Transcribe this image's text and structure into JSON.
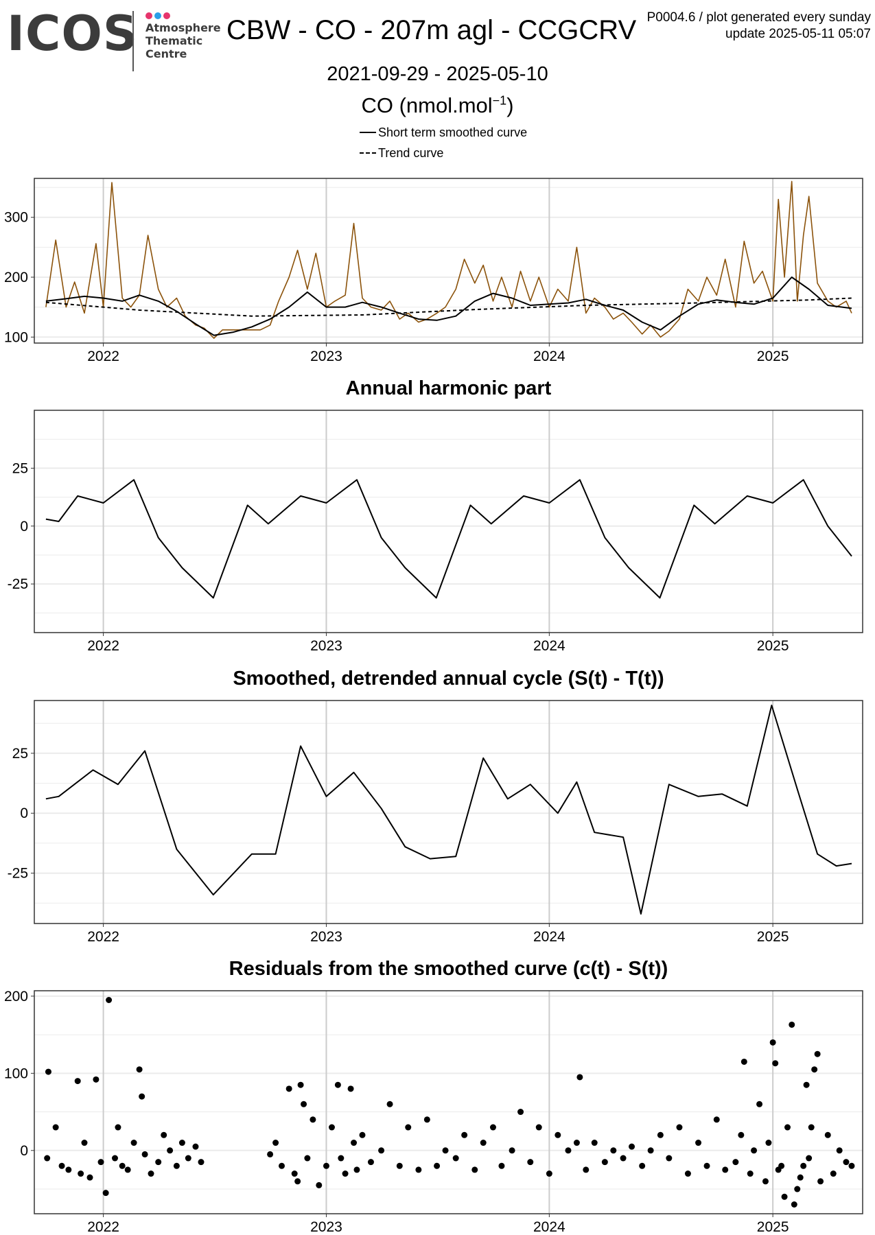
{
  "header": {
    "logo": {
      "wordmark": "ICOS",
      "subtitle_lines": [
        "Atmosphere",
        "Thematic",
        "Centre"
      ],
      "dot_colors": [
        "#e6356c",
        "#2b9fe8",
        "#e6356c"
      ]
    },
    "title": "CBW - CO - 207m agl - CCGCRV",
    "meta_line1": "P0004.6 / plot generated every sunday",
    "meta_line2": "update  2025-05-11 05:07",
    "date_range": "2021-09-29 - 2025-05-10",
    "unit_base": "CO (nmol.mol",
    "unit_sup": "−1",
    "unit_close": ")"
  },
  "legend": [
    {
      "label": "Short term smoothed curve",
      "style": "solid"
    },
    {
      "label": "Trend curve",
      "style": "dashed"
    }
  ],
  "colors": {
    "observations": "#8b520a",
    "curves": "#000000",
    "grid_major": "#cccccc",
    "grid_minor": "#ebebeb",
    "panel_border": "#333333"
  },
  "chart_data": [
    {
      "type": "line",
      "title": "",
      "x_ticks": [
        "2022",
        "2023",
        "2024",
        "2025"
      ],
      "y_ticks": [
        "100",
        "200",
        "300"
      ],
      "xlim": [
        "2021-09-10",
        "2025-05-28"
      ],
      "ylim": [
        90,
        365
      ],
      "series": [
        {
          "name": "",
          "style": "observations",
          "x": [
            "2021-09-29",
            "2021-10-15",
            "2021-11-01",
            "2021-11-15",
            "2021-12-01",
            "2021-12-20",
            "2022-01-01",
            "2022-01-15",
            "2022-02-01",
            "2022-02-15",
            "2022-03-01",
            "2022-03-15",
            "2022-04-01",
            "2022-04-15",
            "2022-05-01",
            "2022-05-15",
            "2022-06-01",
            "2022-06-15",
            "2022-07-01",
            "2022-07-15",
            "2022-08-01",
            "2022-08-15",
            "2022-09-01",
            "2022-09-15",
            "2022-10-01",
            "2022-10-15",
            "2022-11-01",
            "2022-11-15",
            "2022-12-01",
            "2022-12-15",
            "2023-01-01",
            "2023-01-15",
            "2023-02-01",
            "2023-02-15",
            "2023-03-01",
            "2023-03-15",
            "2023-04-01",
            "2023-04-15",
            "2023-05-01",
            "2023-05-15",
            "2023-06-01",
            "2023-06-15",
            "2023-07-01",
            "2023-07-15",
            "2023-08-01",
            "2023-08-15",
            "2023-09-01",
            "2023-09-15",
            "2023-10-01",
            "2023-10-15",
            "2023-11-01",
            "2023-11-15",
            "2023-12-01",
            "2023-12-15",
            "2024-01-01",
            "2024-01-15",
            "2024-02-01",
            "2024-02-15",
            "2024-03-01",
            "2024-03-15",
            "2024-04-01",
            "2024-04-15",
            "2024-05-01",
            "2024-05-15",
            "2024-06-01",
            "2024-06-15",
            "2024-07-01",
            "2024-07-15",
            "2024-08-01",
            "2024-08-15",
            "2024-09-01",
            "2024-09-15",
            "2024-10-01",
            "2024-10-15",
            "2024-11-01",
            "2024-11-15",
            "2024-12-01",
            "2024-12-15",
            "2025-01-01",
            "2025-01-10",
            "2025-01-20",
            "2025-02-01",
            "2025-02-10",
            "2025-02-20",
            "2025-03-01",
            "2025-03-15",
            "2025-04-01",
            "2025-04-15",
            "2025-05-01",
            "2025-05-10"
          ],
          "y": [
            150,
            262,
            150,
            192,
            140,
            256,
            150,
            358,
            165,
            150,
            170,
            270,
            180,
            150,
            165,
            135,
            120,
            115,
            98,
            112,
            112,
            112,
            112,
            112,
            120,
            160,
            200,
            245,
            180,
            240,
            150,
            160,
            170,
            290,
            165,
            150,
            145,
            160,
            130,
            140,
            125,
            130,
            140,
            150,
            180,
            230,
            190,
            220,
            160,
            200,
            150,
            210,
            160,
            200,
            150,
            180,
            160,
            250,
            140,
            165,
            150,
            130,
            140,
            125,
            105,
            120,
            100,
            110,
            130,
            180,
            160,
            200,
            170,
            230,
            150,
            260,
            190,
            210,
            160,
            330,
            200,
            360,
            160,
            270,
            335,
            190,
            160,
            150,
            160,
            140
          ]
        },
        {
          "name": "Short term smoothed curve",
          "x": [
            "2021-09-29",
            "2021-11-01",
            "2021-12-01",
            "2022-01-01",
            "2022-02-01",
            "2022-03-01",
            "2022-04-01",
            "2022-05-01",
            "2022-06-01",
            "2022-07-01",
            "2022-08-01",
            "2022-09-01",
            "2022-10-01",
            "2022-11-01",
            "2022-12-01",
            "2023-01-01",
            "2023-02-01",
            "2023-03-01",
            "2023-04-01",
            "2023-05-01",
            "2023-06-01",
            "2023-07-01",
            "2023-08-01",
            "2023-09-01",
            "2023-10-01",
            "2023-11-01",
            "2023-12-01",
            "2024-01-01",
            "2024-02-01",
            "2024-03-01",
            "2024-04-01",
            "2024-05-01",
            "2024-06-01",
            "2024-07-01",
            "2024-08-01",
            "2024-09-01",
            "2024-10-01",
            "2024-11-01",
            "2024-12-01",
            "2025-01-01",
            "2025-02-01",
            "2025-03-01",
            "2025-04-01",
            "2025-05-10"
          ],
          "y": [
            160,
            164,
            168,
            165,
            160,
            170,
            160,
            143,
            122,
            103,
            108,
            117,
            130,
            150,
            175,
            150,
            150,
            158,
            150,
            140,
            130,
            128,
            135,
            160,
            173,
            165,
            153,
            155,
            157,
            163,
            153,
            145,
            125,
            112,
            135,
            155,
            162,
            158,
            155,
            165,
            200,
            180,
            153,
            148
          ]
        },
        {
          "name": "Trend curve",
          "x": [
            "2021-09-29",
            "2022-03-01",
            "2022-09-01",
            "2023-03-01",
            "2023-09-01",
            "2024-03-01",
            "2024-09-01",
            "2025-03-01",
            "2025-05-10"
          ],
          "y": [
            158,
            145,
            135,
            137,
            146,
            153,
            157,
            162,
            165
          ]
        }
      ]
    },
    {
      "type": "line",
      "title": "Annual harmonic part",
      "x_ticks": [
        "2022",
        "2023",
        "2024",
        "2025"
      ],
      "y_ticks": [
        "-25",
        "0",
        "25"
      ],
      "xlim": [
        "2021-09-10",
        "2025-05-28"
      ],
      "ylim": [
        -46,
        50
      ],
      "series": [
        {
          "name": "",
          "x": [
            "2021-09-29",
            "2021-10-20",
            "2021-11-20",
            "2022-01-01",
            "2022-02-20",
            "2022-04-01",
            "2022-05-10",
            "2022-06-30",
            "2022-08-25",
            "2022-09-28",
            "2022-11-20",
            "2023-01-01",
            "2023-02-20",
            "2023-04-01",
            "2023-05-10",
            "2023-06-30",
            "2023-08-25",
            "2023-09-28",
            "2023-11-20",
            "2024-01-01",
            "2024-02-20",
            "2024-04-01",
            "2024-05-10",
            "2024-06-30",
            "2024-08-25",
            "2024-09-28",
            "2024-11-20",
            "2025-01-01",
            "2025-02-20",
            "2025-04-01",
            "2025-05-10"
          ],
          "y": [
            3,
            2,
            13,
            10,
            20,
            -5,
            -18,
            -31,
            9,
            1,
            13,
            10,
            20,
            -5,
            -18,
            -31,
            9,
            1,
            13,
            10,
            20,
            -5,
            -18,
            -31,
            9,
            1,
            13,
            10,
            20,
            0,
            -13
          ]
        }
      ]
    },
    {
      "type": "line",
      "title": "Smoothed, detrended annual cycle (S(t) - T(t))",
      "x_ticks": [
        "2022",
        "2023",
        "2024",
        "2025"
      ],
      "y_ticks": [
        "-25",
        "0",
        "25"
      ],
      "xlim": [
        "2021-09-10",
        "2025-05-28"
      ],
      "ylim": [
        -46,
        47
      ],
      "series": [
        {
          "name": "",
          "x": [
            "2021-09-29",
            "2021-10-20",
            "2021-12-15",
            "2022-01-25",
            "2022-03-10",
            "2022-05-01",
            "2022-06-30",
            "2022-09-01",
            "2022-10-10",
            "2022-11-20",
            "2023-01-01",
            "2023-02-15",
            "2023-04-01",
            "2023-05-10",
            "2023-06-20",
            "2023-08-01",
            "2023-09-15",
            "2023-10-25",
            "2023-12-01",
            "2024-01-15",
            "2024-02-15",
            "2024-03-15",
            "2024-05-01",
            "2024-05-30",
            "2024-07-15",
            "2024-09-01",
            "2024-10-10",
            "2024-11-20",
            "2024-12-30",
            "2025-02-10",
            "2025-03-15",
            "2025-04-15",
            "2025-05-10"
          ],
          "y": [
            6,
            7,
            18,
            12,
            26,
            -15,
            -34,
            -17,
            -17,
            28,
            7,
            17,
            2,
            -14,
            -19,
            -18,
            23,
            6,
            12,
            0,
            13,
            -8,
            -10,
            -42,
            12,
            7,
            8,
            3,
            45,
            10,
            -17,
            -22,
            -21
          ]
        }
      ]
    },
    {
      "type": "scatter",
      "title": "Residuals from the smoothed curve (c(t) - S(t))",
      "x_ticks": [
        "2022",
        "2023",
        "2024",
        "2025"
      ],
      "y_ticks": [
        "0",
        "100",
        "200"
      ],
      "xlim": [
        "2021-09-10",
        "2025-05-28"
      ],
      "ylim": [
        -82,
        207
      ],
      "series": [
        {
          "name": "",
          "x": [
            "2021-10-01",
            "2021-10-03",
            "2021-10-15",
            "2021-10-25",
            "2021-11-05",
            "2021-11-20",
            "2021-11-25",
            "2021-12-01",
            "2021-12-10",
            "2021-12-20",
            "2021-12-28",
            "2022-01-05",
            "2022-01-10",
            "2022-01-20",
            "2022-01-25",
            "2022-02-01",
            "2022-02-10",
            "2022-02-20",
            "2022-03-01",
            "2022-03-05",
            "2022-03-10",
            "2022-03-20",
            "2022-04-01",
            "2022-04-10",
            "2022-04-20",
            "2022-05-01",
            "2022-05-10",
            "2022-05-20",
            "2022-06-01",
            "2022-06-10",
            "2022-10-01",
            "2022-10-10",
            "2022-10-20",
            "2022-11-01",
            "2022-11-10",
            "2022-11-15",
            "2022-11-20",
            "2022-11-25",
            "2022-12-01",
            "2022-12-10",
            "2022-12-20",
            "2023-01-01",
            "2023-01-10",
            "2023-01-20",
            "2023-01-25",
            "2023-02-01",
            "2023-02-10",
            "2023-02-15",
            "2023-02-20",
            "2023-03-01",
            "2023-03-15",
            "2023-04-01",
            "2023-04-15",
            "2023-05-01",
            "2023-05-15",
            "2023-06-01",
            "2023-06-15",
            "2023-07-01",
            "2023-07-15",
            "2023-08-01",
            "2023-08-15",
            "2023-09-01",
            "2023-09-15",
            "2023-10-01",
            "2023-10-15",
            "2023-11-01",
            "2023-11-15",
            "2023-12-01",
            "2023-12-15",
            "2024-01-01",
            "2024-01-15",
            "2024-02-01",
            "2024-02-15",
            "2024-02-20",
            "2024-03-01",
            "2024-03-15",
            "2024-04-01",
            "2024-04-15",
            "2024-05-01",
            "2024-05-15",
            "2024-06-01",
            "2024-06-15",
            "2024-07-01",
            "2024-07-15",
            "2024-08-01",
            "2024-08-15",
            "2024-09-01",
            "2024-09-15",
            "2024-10-01",
            "2024-10-15",
            "2024-11-01",
            "2024-11-10",
            "2024-11-15",
            "2024-11-25",
            "2024-12-01",
            "2024-12-10",
            "2024-12-20",
            "2024-12-25",
            "2025-01-01",
            "2025-01-05",
            "2025-01-10",
            "2025-01-15",
            "2025-01-20",
            "2025-01-25",
            "2025-02-01",
            "2025-02-05",
            "2025-02-10",
            "2025-02-15",
            "2025-02-20",
            "2025-02-25",
            "2025-03-01",
            "2025-03-05",
            "2025-03-10",
            "2025-03-15",
            "2025-03-20",
            "2025-04-01",
            "2025-04-10",
            "2025-04-20",
            "2025-05-01",
            "2025-05-10"
          ],
          "y": [
            -10,
            102,
            30,
            -20,
            -25,
            90,
            -30,
            10,
            -35,
            92,
            -15,
            -55,
            195,
            -10,
            30,
            -20,
            -25,
            10,
            105,
            70,
            -5,
            -30,
            -15,
            20,
            0,
            -20,
            10,
            -10,
            5,
            -15,
            -5,
            10,
            -20,
            80,
            -30,
            -40,
            85,
            60,
            -10,
            40,
            -45,
            -20,
            30,
            85,
            -10,
            -30,
            80,
            10,
            -25,
            20,
            -15,
            0,
            60,
            -20,
            30,
            -25,
            40,
            -20,
            0,
            -10,
            20,
            -25,
            10,
            30,
            -20,
            0,
            50,
            -15,
            30,
            -30,
            20,
            0,
            10,
            95,
            -25,
            10,
            -15,
            0,
            -10,
            5,
            -20,
            0,
            20,
            -10,
            30,
            -30,
            10,
            -20,
            40,
            -25,
            -15,
            20,
            115,
            -30,
            0,
            60,
            -40,
            10,
            140,
            113,
            -25,
            -20,
            -60,
            30,
            163,
            -70,
            -50,
            -35,
            -20,
            85,
            -10,
            30,
            105,
            125,
            -40,
            20,
            -30,
            0,
            -15,
            -20
          ]
        }
      ]
    }
  ]
}
